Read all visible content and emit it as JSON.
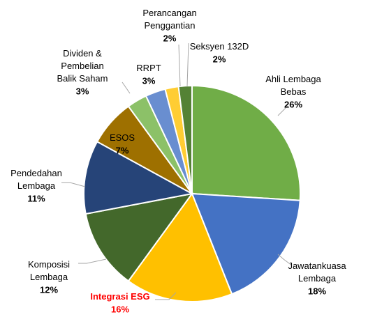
{
  "chart_data": {
    "type": "pie",
    "categories": [
      "Ahli Lembaga\nBebas",
      "Jawatankuasa\nLembaga",
      "Integrasi ESG",
      "Komposisi\nLembaga",
      "Pendedahan\nLembaga",
      "ESOS",
      "Dividen  &\nPembelian\nBalik Saham",
      "RRPT",
      "Perancangan\nPenggantian",
      "Seksyen 132D"
    ],
    "values": [
      26,
      18,
      16,
      12,
      11,
      7,
      3,
      3,
      2,
      2
    ],
    "value_labels": [
      "26%",
      "18%",
      "16%",
      "12%",
      "11%",
      "7%",
      "3%",
      "3%",
      "2%",
      "2%"
    ],
    "colors": [
      "#70ad47",
      "#4472c4",
      "#ffc000",
      "#43682b",
      "#264478",
      "#9e7000",
      "#8cc168",
      "#698ed0",
      "#ffcd33",
      "#548235"
    ]
  }
}
